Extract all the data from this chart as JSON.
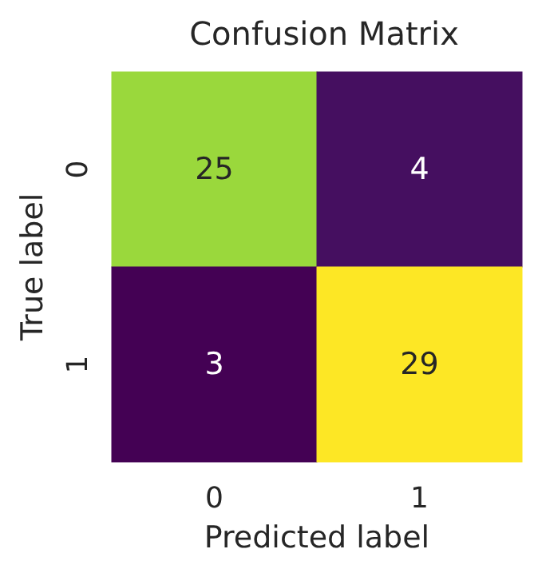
{
  "chart_data": {
    "type": "heatmap",
    "title": "Confusion Matrix",
    "xlabel": "Predicted label",
    "ylabel": "True label",
    "categories": [
      "0",
      "1"
    ],
    "y_categories": [
      "0",
      "1"
    ],
    "cells": [
      [
        25,
        4
      ],
      [
        3,
        29
      ]
    ],
    "data_labels": true
  }
}
